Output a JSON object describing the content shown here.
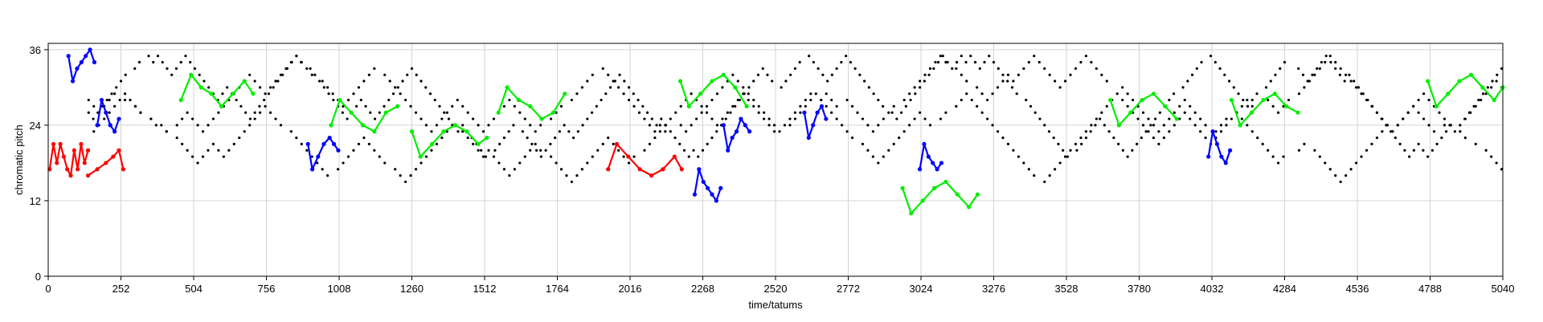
{
  "chart_data": {
    "type": "scatter",
    "title": "",
    "xlabel": "time/tatums",
    "ylabel": "chromatic pitch",
    "xlim": [
      0,
      5040
    ],
    "ylim": [
      0,
      37
    ],
    "xticks": [
      0,
      252,
      504,
      756,
      1008,
      1260,
      1512,
      1764,
      2016,
      2268,
      2520,
      2772,
      3024,
      3276,
      3528,
      3780,
      4032,
      4284,
      4536,
      4788,
      5040
    ],
    "yticks": [
      0,
      12,
      24,
      36
    ],
    "grid": true,
    "legend": "none",
    "background_notes": {
      "color": "#000000",
      "generation": {
        "seed": 7,
        "voices": [
          {
            "center": 29,
            "amp": 6,
            "step": 18
          },
          {
            "center": 22,
            "amp": 7,
            "step": 18
          },
          {
            "center": 27,
            "amp": 8,
            "step": 16
          }
        ]
      }
    },
    "series": [
      {
        "color": "#ff0000",
        "x": [
          5,
          18,
          30,
          42,
          54,
          66,
          78,
          90,
          102,
          114,
          126,
          138
        ],
        "y": [
          17,
          21,
          18,
          21,
          19,
          17,
          16,
          20,
          17,
          21,
          18,
          20
        ]
      },
      {
        "color": "#ff0000",
        "x": [
          138,
          170,
          200,
          225,
          245,
          260
        ],
        "y": [
          16,
          17,
          18,
          19,
          20,
          17
        ]
      },
      {
        "color": "#0000ff",
        "x": [
          70,
          85,
          100,
          115,
          130,
          145,
          160
        ],
        "y": [
          35,
          31,
          33,
          34,
          35,
          36,
          34
        ]
      },
      {
        "color": "#0000ff",
        "x": [
          170,
          185,
          200,
          215,
          230,
          245
        ],
        "y": [
          24,
          28,
          26,
          24,
          23,
          25
        ]
      },
      {
        "color": "#00ee00",
        "x": [
          460,
          495,
          530,
          565,
          600,
          640,
          680,
          710
        ],
        "y": [
          28,
          32,
          30,
          29,
          27,
          29,
          31,
          29
        ]
      },
      {
        "color": "#0000ff",
        "x": [
          900,
          915,
          935,
          955,
          975,
          990,
          1005
        ],
        "y": [
          21,
          17,
          19,
          21,
          22,
          21,
          20
        ]
      },
      {
        "color": "#00ee00",
        "x": [
          980,
          1010,
          1050,
          1090,
          1130,
          1170,
          1210
        ],
        "y": [
          24,
          28,
          26,
          24,
          23,
          26,
          27
        ]
      },
      {
        "color": "#00ee00",
        "x": [
          1260,
          1290,
          1330,
          1370,
          1410,
          1450,
          1490,
          1520
        ],
        "y": [
          23,
          19,
          21,
          23,
          24,
          23,
          21,
          22
        ]
      },
      {
        "color": "#00ee00",
        "x": [
          1560,
          1590,
          1630,
          1670,
          1710,
          1750,
          1790
        ],
        "y": [
          26,
          30,
          28,
          27,
          25,
          26,
          29
        ]
      },
      {
        "color": "#ff0000",
        "x": [
          1940,
          1970,
          2010,
          2050,
          2090,
          2130,
          2170,
          2195
        ],
        "y": [
          17,
          21,
          19,
          17,
          16,
          17,
          19,
          17
        ]
      },
      {
        "color": "#00ee00",
        "x": [
          2190,
          2220,
          2260,
          2300,
          2340,
          2380,
          2420
        ],
        "y": [
          31,
          27,
          29,
          31,
          32,
          30,
          27
        ]
      },
      {
        "color": "#0000ff",
        "x": [
          2240,
          2255,
          2270,
          2285,
          2300,
          2315,
          2330
        ],
        "y": [
          13,
          17,
          15,
          14,
          13,
          12,
          14
        ]
      },
      {
        "color": "#0000ff",
        "x": [
          2340,
          2355,
          2370,
          2385,
          2400,
          2415,
          2430
        ],
        "y": [
          24,
          20,
          22,
          23,
          25,
          24,
          23
        ]
      },
      {
        "color": "#0000ff",
        "x": [
          2620,
          2635,
          2650,
          2665,
          2680,
          2695
        ],
        "y": [
          26,
          22,
          24,
          26,
          27,
          25
        ]
      },
      {
        "color": "#00ee00",
        "x": [
          2960,
          2990,
          3030,
          3070,
          3110,
          3150,
          3190,
          3220
        ],
        "y": [
          14,
          10,
          12,
          14,
          15,
          13,
          11,
          13
        ]
      },
      {
        "color": "#0000ff",
        "x": [
          3020,
          3035,
          3050,
          3065,
          3080,
          3095
        ],
        "y": [
          17,
          21,
          19,
          18,
          17,
          18
        ]
      },
      {
        "color": "#00ee00",
        "x": [
          3680,
          3710,
          3750,
          3790,
          3830,
          3870,
          3910
        ],
        "y": [
          28,
          24,
          26,
          28,
          29,
          27,
          25
        ]
      },
      {
        "color": "#0000ff",
        "x": [
          4020,
          4035,
          4050,
          4065,
          4080,
          4095
        ],
        "y": [
          19,
          23,
          21,
          19,
          18,
          20
        ]
      },
      {
        "color": "#00ee00",
        "x": [
          4100,
          4130,
          4170,
          4210,
          4250,
          4290,
          4330
        ],
        "y": [
          28,
          24,
          26,
          28,
          29,
          27,
          26
        ]
      },
      {
        "color": "#00ee00",
        "x": [
          4780,
          4810,
          4850,
          4890,
          4930,
          4970,
          5010,
          5040
        ],
        "y": [
          31,
          27,
          29,
          31,
          32,
          30,
          28,
          30
        ]
      }
    ]
  }
}
